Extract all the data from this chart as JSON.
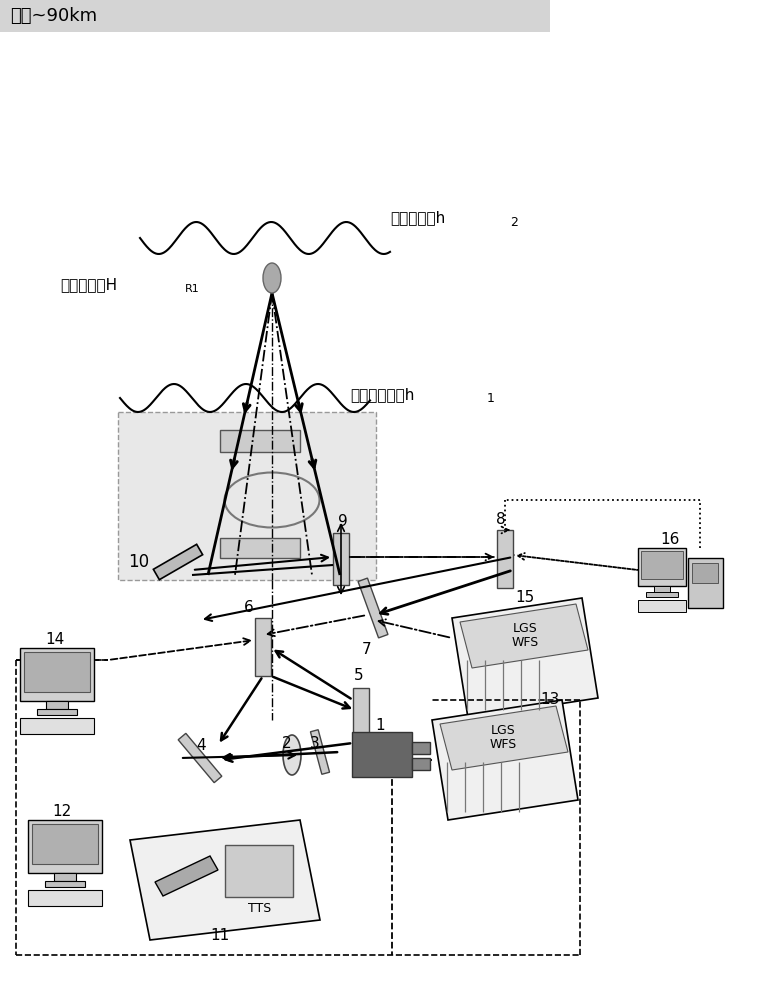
{
  "title_text": "钠层~90km",
  "label_high_turb": "高层湍流，h",
  "label_high_turb_sub": "2",
  "label_rayleigh": "瑞利信标，H",
  "label_rayleigh_sub": "R1",
  "label_ground_turb": "地表层湍流，h",
  "label_ground_turb_sub": "1",
  "num_labels": [
    "10",
    "9",
    "8",
    "7",
    "6",
    "5",
    "4",
    "3",
    "2",
    "1",
    "11",
    "12",
    "13",
    "14",
    "15",
    "16"
  ],
  "lgs_wfs_text": [
    "LGS",
    "WFS"
  ],
  "tts_text": "TTS",
  "bg_color": "#ffffff",
  "title_bg": "#d4d4d4",
  "gray_box": "#e0e0e0",
  "gray_dark": "#aaaaaa",
  "gray_light": "#cccccc"
}
